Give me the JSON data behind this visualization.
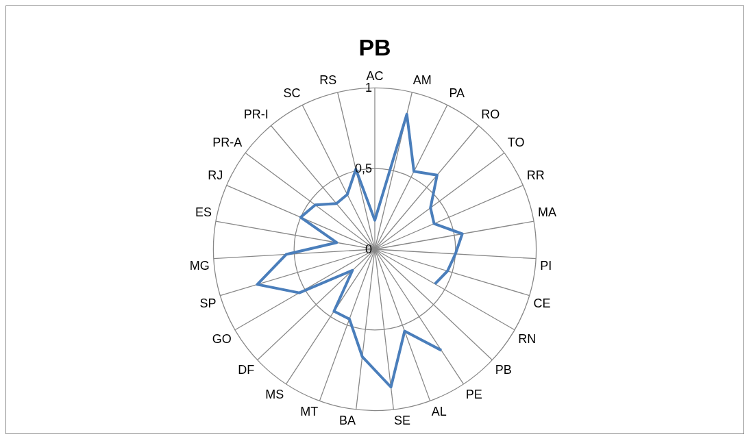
{
  "chart_data": {
    "type": "radar",
    "title": "PB",
    "categories": [
      "AC",
      "AM",
      "PA",
      "RO",
      "TO",
      "RR",
      "MA",
      "PI",
      "CE",
      "RN",
      "PB",
      "PE",
      "AL",
      "SE",
      "BA",
      "MT",
      "MS",
      "DF",
      "GO",
      "SP",
      "MG",
      "ES",
      "RJ",
      "PR-A",
      "PR-I",
      "SC",
      "RS"
    ],
    "series": [
      {
        "color": "#4a7ebb",
        "values": [
          0.18,
          0.86,
          0.54,
          0.6,
          0.43,
          0.4,
          0.55,
          0.5,
          0.47,
          0.43,
          null,
          0.75,
          0.54,
          0.86,
          0.67,
          0.46,
          0.46,
          0.19,
          0.54,
          0.76,
          0.55,
          0.24,
          0.5,
          0.46,
          0.37,
          0.38,
          0.51
        ]
      }
    ],
    "ylim": [
      0,
      1
    ],
    "yticks": [
      0,
      {
        "value": 0.5,
        "label": "0,5"
      },
      1
    ],
    "grid": true,
    "legend": false,
    "marker": "none",
    "line_style": "solid"
  }
}
